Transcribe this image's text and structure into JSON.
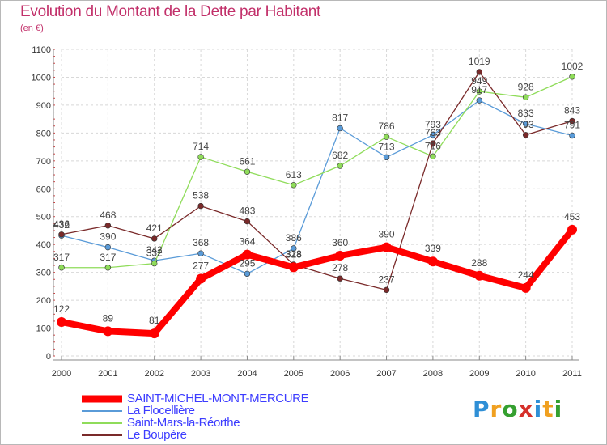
{
  "header": {
    "title": "Evolution du Montant de la Dette par Habitant",
    "subtitle": "(en €)"
  },
  "logo": {
    "text": "Proxiti",
    "colors": [
      "#2f8fd6",
      "#f0a020",
      "#35a030",
      "#d6302a",
      "#2f8fd6",
      "#f0a020",
      "#35a030"
    ]
  },
  "chart_data": {
    "type": "line",
    "x": [
      "2000",
      "2001",
      "2002",
      "2003",
      "2004",
      "2005",
      "2006",
      "2007",
      "2008",
      "2009",
      "2010",
      "2011"
    ],
    "ylim": [
      0,
      1100
    ],
    "yticks": [
      0,
      100,
      200,
      300,
      400,
      500,
      600,
      700,
      800,
      900,
      1000,
      1100
    ],
    "grid": true,
    "legend_position": "bottom-left",
    "series": [
      {
        "name": "SAINT-MICHEL-MONT-MERCURE",
        "color": "#ff0000",
        "values": [
          122,
          89,
          81,
          277,
          364,
          318,
          360,
          390,
          339,
          288,
          244,
          453
        ]
      },
      {
        "name": "La Flocellière",
        "color": "#5a9bd8",
        "values": [
          432,
          390,
          342,
          368,
          295,
          386,
          817,
          713,
          793,
          917,
          833,
          791
        ]
      },
      {
        "name": "Saint-Mars-la-Réorthe",
        "color": "#8fdc5a",
        "values": [
          317,
          317,
          332,
          714,
          661,
          613,
          682,
          786,
          716,
          949,
          928,
          1002
        ]
      },
      {
        "name": "Le Boupère",
        "color": "#7a2a2a",
        "values": [
          436,
          468,
          421,
          538,
          483,
          328,
          278,
          237,
          763,
          1019,
          793,
          843
        ]
      }
    ]
  }
}
